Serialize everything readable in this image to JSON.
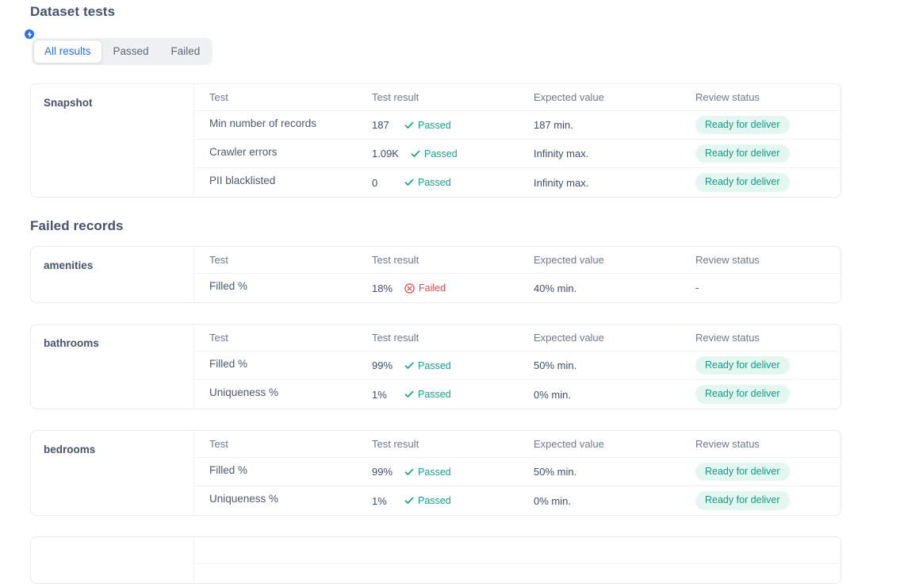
{
  "page": {
    "title": "Dataset tests"
  },
  "tabs": [
    {
      "label": "All results",
      "active": true
    },
    {
      "label": "Passed",
      "active": false
    },
    {
      "label": "Failed",
      "active": false
    }
  ],
  "columns": [
    "Test",
    "Test result",
    "Expected value",
    "Review status"
  ],
  "colors": {
    "accent_blue": "#2a6fe8",
    "passed_teal": "#17a08b",
    "failed_red": "#e5494f",
    "badge_bg": "#e3f6ef",
    "badge_text": "#169b83"
  },
  "sections": [
    {
      "heading": "",
      "cards": [
        {
          "name": "Snapshot",
          "partial": false,
          "rows": [
            {
              "test": "Min number of records",
              "result_value": "187",
              "status": "Passed",
              "expected": "187 min.",
              "review": {
                "type": "badge",
                "label": "Ready for deliver"
              }
            },
            {
              "test": "Crawler errors",
              "result_value": "1.09K",
              "status": "Passed",
              "expected": "Infinity max.",
              "review": {
                "type": "badge",
                "label": "Ready for deliver"
              }
            },
            {
              "test": "PII blacklisted",
              "result_value": "0",
              "status": "Passed",
              "expected": "Infinity max.",
              "review": {
                "type": "badge",
                "label": "Ready for deliver"
              }
            }
          ]
        }
      ]
    },
    {
      "heading": "Failed records",
      "cards": [
        {
          "name": "amenities",
          "partial": false,
          "rows": [
            {
              "test": "Filled %",
              "result_value": "18%",
              "status": "Failed",
              "expected": "40% min.",
              "review": {
                "type": "text",
                "label": "-"
              }
            }
          ]
        },
        {
          "name": "bathrooms",
          "partial": false,
          "rows": [
            {
              "test": "Filled %",
              "result_value": "99%",
              "status": "Passed",
              "expected": "50% min.",
              "review": {
                "type": "badge",
                "label": "Ready for deliver"
              }
            },
            {
              "test": "Uniqueness %",
              "result_value": "1%",
              "status": "Passed",
              "expected": "0% min.",
              "review": {
                "type": "badge",
                "label": "Ready for deliver"
              }
            }
          ]
        },
        {
          "name": "bedrooms",
          "partial": false,
          "rows": [
            {
              "test": "Filled %",
              "result_value": "99%",
              "status": "Passed",
              "expected": "50% min.",
              "review": {
                "type": "badge",
                "label": "Ready for deliver"
              }
            },
            {
              "test": "Uniqueness %",
              "result_value": "1%",
              "status": "Passed",
              "expected": "0% min.",
              "review": {
                "type": "badge",
                "label": "Ready for deliver"
              }
            }
          ]
        },
        {
          "name": "",
          "partial": true,
          "rows": []
        }
      ]
    }
  ]
}
